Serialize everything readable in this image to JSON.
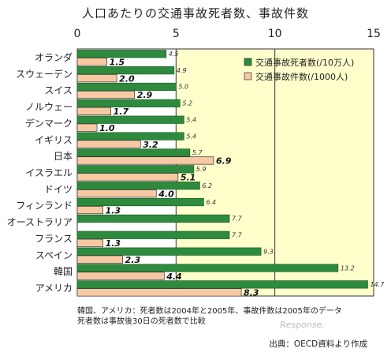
{
  "chart_data": {
    "type": "bar",
    "orientation": "horizontal",
    "title": "人口あたりの交通事故死者数、事故件数",
    "xlim": [
      0,
      15
    ],
    "xticks": [
      "0",
      "5",
      "10",
      "15"
    ],
    "categories": [
      "オランダ",
      "スウェーデン",
      "スイス",
      "ノルウェー",
      "デンマーク",
      "イギリス",
      "日本",
      "イスラエル",
      "ドイツ",
      "フィンランド",
      "オーストラリア",
      "フランス",
      "スペイン",
      "韓国",
      "アメリカ"
    ],
    "series": [
      {
        "name": "交通事故死者数(/10万人)",
        "color": "#2e8b3e",
        "values": [
          4.5,
          4.9,
          5.0,
          5.2,
          5.4,
          5.4,
          5.7,
          5.9,
          6.2,
          6.4,
          7.7,
          7.7,
          9.3,
          13.2,
          14.7
        ],
        "labels": [
          "4.5",
          "4.9",
          "5.0",
          "5.2",
          "5.4",
          "5.4",
          "5.7",
          "5.9",
          "6.2",
          "6.4",
          "7.7",
          "7.7",
          "9.3",
          "13.2",
          "14.7"
        ]
      },
      {
        "name": "交通事故件数(/1000人)",
        "color": "#f7c9a3",
        "values": [
          1.5,
          2.0,
          2.9,
          1.7,
          1.0,
          3.2,
          6.9,
          5.1,
          4.0,
          1.3,
          null,
          1.3,
          2.3,
          4.4,
          8.3
        ],
        "labels": [
          "1.5",
          "2.0",
          "2.9",
          "1.7",
          "1.0",
          "3.2",
          "6.9",
          "5.1",
          "4.0",
          "1.3",
          "",
          "1.3",
          "2.3",
          "4.4",
          "8.3"
        ]
      }
    ],
    "legend_position": "top-right",
    "grid": true,
    "highlight_range": [
      5,
      15
    ],
    "highlight_color": "#ffffcc"
  },
  "notes": [
    "韓国、アメリカ：死者数は2004年と2005年、事故件数は2005年のデータ",
    "死者数は事故後30日の死者数で比較"
  ],
  "source": "出典：OECD資料より作成",
  "watermark": "Response."
}
